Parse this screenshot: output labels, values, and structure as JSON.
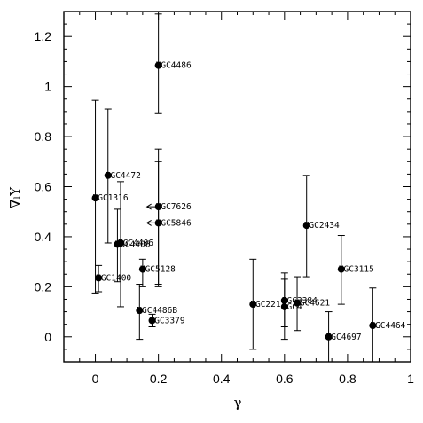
{
  "chart_data": {
    "type": "scatter",
    "title": "",
    "xlabel": "γ",
    "ylabel": "∇ₗΥ",
    "xlim": [
      -0.1,
      1.0
    ],
    "ylim": [
      -0.1,
      1.3
    ],
    "xticks": [
      0,
      0.2,
      0.4,
      0.6,
      0.8,
      1
    ],
    "xtick_labels": [
      "0",
      "0.2",
      "0.4",
      "0.6",
      "0.8",
      "1"
    ],
    "yticks": [
      0,
      0.2,
      0.4,
      0.6,
      0.8,
      1,
      1.2
    ],
    "ytick_labels": [
      "0",
      "0.2",
      "0.4",
      "0.6",
      "0.8",
      "1",
      "1.2"
    ],
    "grid": false,
    "points": [
      {
        "name": "NGC4486",
        "x": 0.2,
        "y": 1.085,
        "err_low": 0.895,
        "err_high": 1.29,
        "upper_limit": false
      },
      {
        "name": "NGC4472",
        "x": 0.04,
        "y": 0.645,
        "err_low": 0.375,
        "err_high": 0.91,
        "upper_limit": false
      },
      {
        "name": "NGC1316",
        "x": 0.0,
        "y": 0.555,
        "err_low": 0.175,
        "err_high": 0.945,
        "upper_limit": false
      },
      {
        "name": "NGC7626",
        "x": 0.2,
        "y": 0.52,
        "err_low": 0.21,
        "err_high": 0.75,
        "upper_limit": true
      },
      {
        "name": "NGC5846",
        "x": 0.2,
        "y": 0.455,
        "err_low": 0.2,
        "err_high": 0.7,
        "upper_limit": true
      },
      {
        "name": "NGC4406",
        "x": 0.07,
        "y": 0.37,
        "err_low": 0.22,
        "err_high": 0.51,
        "upper_limit": false
      },
      {
        "name": "NGC4406",
        "x": 0.08,
        "y": 0.375,
        "err_low": 0.12,
        "err_high": 0.62,
        "upper_limit": false
      },
      {
        "name": "NGC5128",
        "x": 0.15,
        "y": 0.27,
        "err_low": 0.2,
        "err_high": 0.31,
        "upper_limit": false
      },
      {
        "name": "NGC1400",
        "x": 0.01,
        "y": 0.235,
        "err_low": 0.18,
        "err_high": 0.285,
        "upper_limit": false
      },
      {
        "name": "NGC4486B",
        "x": 0.14,
        "y": 0.105,
        "err_low": -0.01,
        "err_high": 0.21,
        "upper_limit": false
      },
      {
        "name": "NGC3379",
        "x": 0.18,
        "y": 0.065,
        "err_low": 0.04,
        "err_high": 0.09,
        "upper_limit": false
      },
      {
        "name": "NGC2434",
        "x": 0.67,
        "y": 0.445,
        "err_low": 0.24,
        "err_high": 0.645,
        "upper_limit": false
      },
      {
        "name": "NGC3115",
        "x": 0.78,
        "y": 0.27,
        "err_low": 0.13,
        "err_high": 0.405,
        "upper_limit": false
      },
      {
        "name": "NGC221",
        "x": 0.5,
        "y": 0.13,
        "err_low": -0.05,
        "err_high": 0.31,
        "upper_limit": false
      },
      {
        "name": "NGC3384",
        "x": 0.6,
        "y": 0.145,
        "err_low": 0.04,
        "err_high": 0.255,
        "upper_limit": false
      },
      {
        "name": "NGC4",
        "x": 0.6,
        "y": 0.12,
        "err_low": -0.01,
        "err_high": 0.23,
        "upper_limit": false
      },
      {
        "name": "NGC4621",
        "x": 0.64,
        "y": 0.135,
        "err_low": 0.025,
        "err_high": 0.24,
        "upper_limit": false
      },
      {
        "name": "NGC4697",
        "x": 0.74,
        "y": 0.0,
        "err_low": -0.1,
        "err_high": 0.1,
        "upper_limit": false
      },
      {
        "name": "NGC4464",
        "x": 0.88,
        "y": 0.045,
        "err_low": -0.1,
        "err_high": 0.195,
        "upper_limit": false
      }
    ]
  }
}
